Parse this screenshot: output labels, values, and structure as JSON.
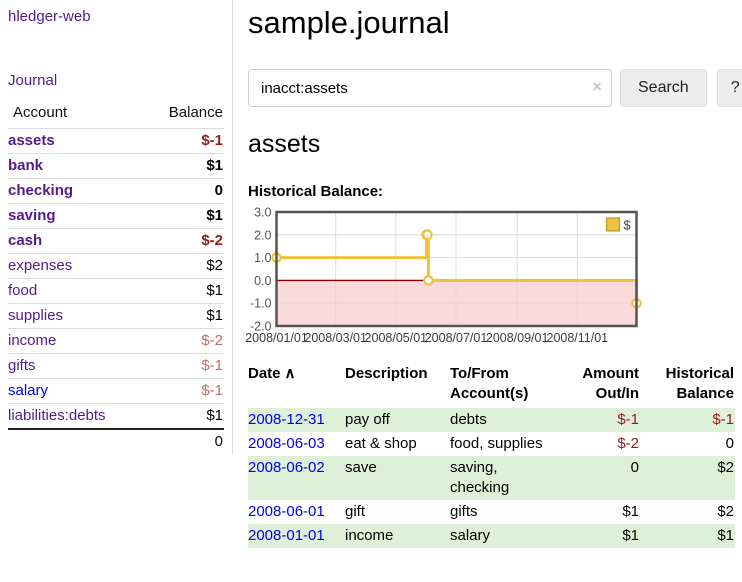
{
  "sidebar": {
    "brand": "hledger-web",
    "journal_link": "Journal",
    "accounts_table": {
      "headers": {
        "account": "Account",
        "balance": "Balance"
      },
      "rows": [
        {
          "name": "assets",
          "depth": 1,
          "balance": "$-1",
          "neg": true,
          "matched": true
        },
        {
          "name": "bank",
          "depth": 2,
          "balance": "$1",
          "matched": true
        },
        {
          "name": "checking",
          "depth": 3,
          "balance": "0",
          "matched": true
        },
        {
          "name": "saving",
          "depth": 3,
          "balance": "$1",
          "matched": true
        },
        {
          "name": "cash",
          "depth": 2,
          "balance": "$-2",
          "neg": true,
          "matched": true
        },
        {
          "name": "expenses",
          "depth": 1,
          "balance": "$2"
        },
        {
          "name": "food",
          "depth": 2,
          "balance": "$1"
        },
        {
          "name": "supplies",
          "depth": 2,
          "balance": "$1"
        },
        {
          "name": "income",
          "depth": 1,
          "balance": "$-2",
          "neg_muted": true
        },
        {
          "name": "gifts",
          "depth": 2,
          "balance": "$-1",
          "neg_muted": true
        },
        {
          "name": "salary",
          "depth": 2,
          "balance": "$-1",
          "neg_muted": true,
          "link_blue": true
        },
        {
          "name": "liabilities:debts",
          "depth": 1,
          "balance": "$1"
        }
      ],
      "total": "0"
    }
  },
  "header": {
    "title": "sample.journal"
  },
  "search": {
    "value": "inacct:assets",
    "clear_icon": "×",
    "button_label": "Search",
    "help_label": "?"
  },
  "account_page": {
    "heading": "assets",
    "chart_label": "Historical Balance:"
  },
  "chart_data": {
    "type": "line",
    "step": true,
    "title": "Historical Balance:",
    "xrange": [
      "2008-01-01",
      "2008-12-31"
    ],
    "ylim": [
      -2,
      3
    ],
    "yticks": [
      "3.0",
      "2.0",
      "1.0",
      "0.0",
      "-1.0",
      "-2.0"
    ],
    "xticks": [
      "2008/01/01",
      "2008/03/01",
      "2008/05/01",
      "2008/07/01",
      "2008/09/01",
      "2008/11/01"
    ],
    "series": [
      {
        "name": "$",
        "color": "#edc240",
        "points": [
          [
            "2008-01-01",
            1
          ],
          [
            "2008-06-01",
            2
          ],
          [
            "2008-06-02",
            2
          ],
          [
            "2008-06-03",
            0
          ],
          [
            "2008-12-31",
            -1
          ]
        ]
      }
    ],
    "legend_position": "top-right",
    "grid": true,
    "negative_region_color": "#fadada",
    "zero_line_color": "#8b0000"
  },
  "register_table": {
    "headers": {
      "date": "Date",
      "sort_icon": "∧",
      "description": "Description",
      "accounts": "To/From Account(s)",
      "amount": "Amount Out/In",
      "balance": "Historical Balance"
    },
    "rows": [
      {
        "date": "2008-12-31",
        "description": "pay off",
        "accounts": "debts",
        "amount": "$-1",
        "amount_neg": true,
        "balance": "$-1",
        "balance_neg": true
      },
      {
        "date": "2008-06-03",
        "description": "eat & shop",
        "accounts": "food, supplies",
        "amount": "$-2",
        "amount_neg": true,
        "balance": "0"
      },
      {
        "date": "2008-06-02",
        "description": "save",
        "accounts": "saving, checking",
        "amount": "0",
        "balance": "$2"
      },
      {
        "date": "2008-06-01",
        "description": "gift",
        "accounts": "gifts",
        "amount": "$1",
        "balance": "$2"
      },
      {
        "date": "2008-01-01",
        "description": "income",
        "accounts": "salary",
        "amount": "$1",
        "balance": "$1"
      }
    ]
  },
  "colors": {
    "link_purple": "#551a8b",
    "link_blue": "#0000e6",
    "negative_red": "#981919",
    "negative_muted": "#bd6e6e",
    "stripe_green": "#dff0d8",
    "series_gold": "#edc240"
  }
}
